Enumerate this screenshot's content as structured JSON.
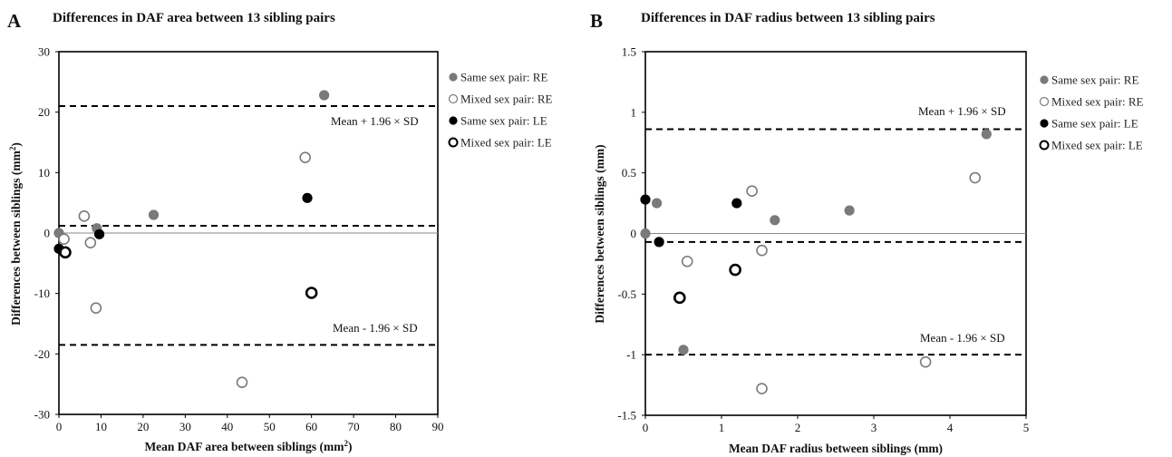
{
  "chart_data": [
    {
      "type": "scatter",
      "panel_label": "A",
      "title": "Differences in DAF area between 13 sibling pairs",
      "xlabel": "Mean DAF area between siblings (mm",
      "xlabel_sup": "2",
      "xlabel_end": ")",
      "ylabel": "Differences between siblings (mm",
      "ylabel_sup": "2",
      "ylabel_end": ")",
      "xlim": [
        0,
        90
      ],
      "ylim": [
        -30,
        30
      ],
      "xticks": [
        0,
        10,
        20,
        30,
        40,
        50,
        60,
        70,
        80,
        90
      ],
      "yticks": [
        -30,
        -20,
        -10,
        0,
        10,
        20,
        30
      ],
      "reference_lines": [
        {
          "label": "Mean + 1.96 × SD",
          "y": 21
        },
        {
          "label": "",
          "y": 1.2
        },
        {
          "label": "Mean - 1.96 × SD",
          "y": -18.5
        }
      ],
      "zero_line": 0,
      "series": [
        {
          "name": "Same sex pair: RE",
          "style": "filled-gray",
          "points": [
            [
              0,
              0
            ],
            [
              9,
              0.8
            ],
            [
              22.5,
              3
            ],
            [
              63,
              22.8
            ],
            [
              1.5,
              -3.2
            ]
          ]
        },
        {
          "name": "Mixed sex pair: RE",
          "style": "open-gray",
          "points": [
            [
              6,
              2.8
            ],
            [
              1.2,
              -1
            ],
            [
              7.5,
              -1.6
            ],
            [
              8.8,
              -12.4
            ],
            [
              58.5,
              12.5
            ],
            [
              43.5,
              -24.7
            ]
          ]
        },
        {
          "name": "Same sex pair: LE",
          "style": "filled-black",
          "points": [
            [
              0,
              -2.6
            ],
            [
              9.6,
              -0.2
            ],
            [
              59,
              5.8
            ]
          ]
        },
        {
          "name": "Mixed sex pair: LE",
          "style": "open-black",
          "points": [
            [
              1.5,
              -3.2
            ],
            [
              60,
              -9.9
            ]
          ]
        }
      ]
    },
    {
      "type": "scatter",
      "panel_label": "B",
      "title": "Differences in DAF radius between 13 sibling pairs",
      "xlabel": "Mean DAF radius between siblings (mm)",
      "ylabel": "Differences between siblings (mm)",
      "xlim": [
        0,
        5
      ],
      "ylim": [
        -1.5,
        1.5
      ],
      "xticks": [
        0,
        1,
        2,
        3,
        4,
        5
      ],
      "yticks": [
        -1.5,
        -1,
        -0.5,
        0,
        0.5,
        1,
        1.5
      ],
      "reference_lines": [
        {
          "label": "Mean + 1.96 × SD",
          "y": 0.86
        },
        {
          "label": "",
          "y": -0.07
        },
        {
          "label": "Mean - 1.96 × SD",
          "y": -1.0
        }
      ],
      "zero_line": 0,
      "series": [
        {
          "name": "Same sex pair: RE",
          "style": "filled-gray",
          "points": [
            [
              0,
              0
            ],
            [
              0.15,
              0.25
            ],
            [
              1.7,
              0.11
            ],
            [
              2.68,
              0.19
            ],
            [
              4.48,
              0.82
            ],
            [
              0.5,
              -0.96
            ]
          ]
        },
        {
          "name": "Mixed sex pair: RE",
          "style": "open-gray",
          "points": [
            [
              1.4,
              0.35
            ],
            [
              0.55,
              -0.23
            ],
            [
              1.53,
              -0.14
            ],
            [
              4.33,
              0.46
            ],
            [
              3.68,
              -1.06
            ],
            [
              1.53,
              -1.28
            ]
          ]
        },
        {
          "name": "Same sex pair: LE",
          "style": "filled-black",
          "points": [
            [
              0,
              0.28
            ],
            [
              0.18,
              -0.07
            ],
            [
              1.2,
              0.25
            ]
          ]
        },
        {
          "name": "Mixed sex pair: LE",
          "style": "open-black",
          "points": [
            [
              1.18,
              -0.3
            ],
            [
              0.45,
              -0.53
            ]
          ]
        }
      ]
    }
  ],
  "colors": {
    "gray": "#7a7a7a",
    "black": "#000000",
    "axis": "#000000",
    "zero_line": "#888888"
  }
}
